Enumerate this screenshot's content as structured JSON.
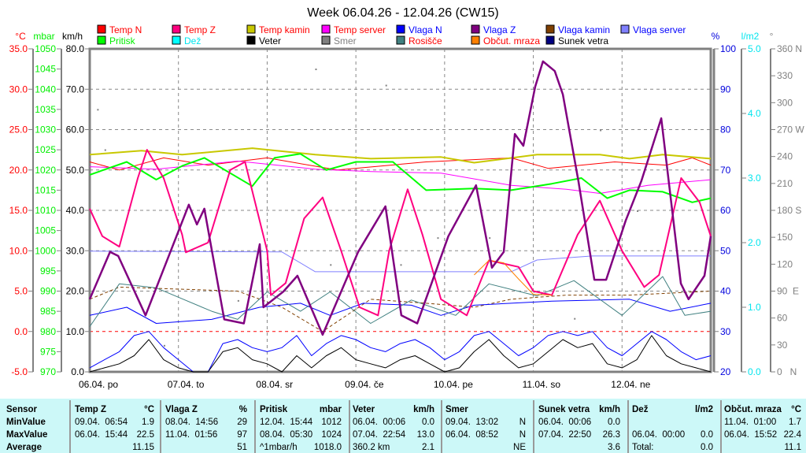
{
  "chart_data": {
    "type": "line",
    "title": "Week 06.04.26 - 12.04.26 (CW15)",
    "x_unit": "hours since 06.04. 00:00",
    "xlim": [
      0,
      168
    ],
    "x_tick_labels": [
      "06.04. po",
      "07.04. to",
      "08.04. sr",
      "09.04. če",
      "10.04. pe",
      "11.04. so",
      "12.04. ne"
    ],
    "axes": {
      "temp": {
        "label": "°C",
        "range": [
          -5,
          35
        ],
        "ticks": [
          "-5.0",
          "0.0",
          "5.0",
          "10.0",
          "15.0",
          "20.0",
          "25.0",
          "30.0",
          "35.0"
        ],
        "color": "#ff0000"
      },
      "pressure": {
        "label": "mbar",
        "range": [
          970,
          1050
        ],
        "ticks": [
          "970",
          "975",
          "980",
          "985",
          "990",
          "995",
          "1000",
          "1005",
          "1010",
          "1015",
          "1020",
          "1025",
          "1030",
          "1035",
          "1040",
          "1045",
          "1050"
        ],
        "color": "#00ee00"
      },
      "wind": {
        "label": "km/h",
        "range": [
          0,
          80
        ],
        "ticks": [
          "0.0",
          "10.0",
          "20.0",
          "30.0",
          "40.0",
          "50.0",
          "60.0",
          "70.0",
          "80.0"
        ],
        "color": "#000000"
      },
      "humidity": {
        "label": "%",
        "range": [
          20,
          100
        ],
        "ticks": [
          "20",
          "30",
          "40",
          "50",
          "60",
          "70",
          "80",
          "90",
          "100"
        ],
        "color": "#0000dd"
      },
      "rain": {
        "label": "l/m2",
        "range": [
          0,
          5
        ],
        "ticks": [
          "0.0",
          "1.0",
          "2.0",
          "3.0",
          "4.0",
          "5.0"
        ],
        "color": "#00e5ee"
      },
      "direction": {
        "label": "°",
        "range": [
          0,
          360
        ],
        "ticks": [
          "0   N",
          "30",
          "60",
          "90  E",
          "120",
          "150",
          "180 S",
          "210",
          "240",
          "270 W",
          "300",
          "330",
          "360 N"
        ],
        "color": "#808080"
      }
    },
    "legend": [
      {
        "name": "Temp N",
        "color": "#ff0000",
        "text_color": "#ff0000"
      },
      {
        "name": "Temp Z",
        "color": "#ff0080",
        "text_color": "#ff0000"
      },
      {
        "name": "Temp kamin",
        "color": "#c8c800",
        "text_color": "#ff0000"
      },
      {
        "name": "Temp server",
        "color": "#ff00ff",
        "text_color": "#ff0000"
      },
      {
        "name": "Vlaga N",
        "color": "#0000ff",
        "text_color": "#0000ff"
      },
      {
        "name": "Vlaga Z",
        "color": "#800080",
        "text_color": "#0000ff"
      },
      {
        "name": "Vlaga kamin",
        "color": "#804000",
        "text_color": "#0000ff"
      },
      {
        "name": "Vlaga server",
        "color": "#8080ff",
        "text_color": "#0000ff"
      },
      {
        "name": "Pritisk",
        "color": "#00ff00",
        "text_color": "#00ee00"
      },
      {
        "name": "Dež",
        "color": "#00ffff",
        "text_color": "#00e5ee"
      },
      {
        "name": "Veter",
        "color": "#000000",
        "text_color": "#000000"
      },
      {
        "name": "Smer",
        "color": "#808080",
        "text_color": "#808080"
      },
      {
        "name": "Rosišče",
        "color": "#408080",
        "text_color": "#ff0000"
      },
      {
        "name": "Občut. mraza",
        "color": "#ff8000",
        "text_color": "#ff0000"
      },
      {
        "name": "Sunek vetra",
        "color": "#000080",
        "text_color": "#000000"
      }
    ],
    "series": [
      {
        "name": "Temp N",
        "axis": "temp",
        "color": "#ff0000",
        "width": 1,
        "x": [
          0,
          8,
          20,
          32,
          48,
          67,
          91,
          114,
          124,
          142,
          156,
          163,
          168
        ],
        "y": [
          21,
          20,
          21.5,
          20.6,
          21.5,
          20,
          21,
          21.5,
          20.2,
          21,
          20.6,
          21.5,
          20.6
        ]
      },
      {
        "name": "Temp kamin",
        "axis": "temp",
        "color": "#c8c800",
        "width": 2,
        "x": [
          0,
          14,
          25,
          44,
          61,
          76,
          95,
          104,
          121,
          138,
          146,
          155,
          168
        ],
        "y": [
          21.9,
          22.4,
          21.9,
          22.7,
          21.9,
          21.4,
          21.6,
          20.9,
          21.9,
          21.9,
          21.4,
          21.9,
          21.4
        ]
      },
      {
        "name": "Temp server",
        "axis": "temp",
        "color": "#ff00ff",
        "width": 1,
        "x": [
          0,
          18,
          40,
          61,
          76,
          95,
          114,
          129,
          138,
          151,
          168
        ],
        "y": [
          20.4,
          20.1,
          21.1,
          20.1,
          19.8,
          19.6,
          18.1,
          17.6,
          17.1,
          18.1,
          18.8
        ]
      },
      {
        "name": "Vlaga server",
        "axis": "humidity",
        "color": "#8080ff",
        "width": 1,
        "x": [
          0,
          52,
          61,
          114,
          121,
          136,
          168
        ],
        "y": [
          49.9,
          49.7,
          44.8,
          44.8,
          47.7,
          48.7,
          48.7
        ]
      },
      {
        "name": "Vlaga kamin",
        "axis": "humidity",
        "color": "#804000",
        "width": 1,
        "dash": "4,3",
        "x": [
          0,
          8,
          40,
          52,
          63,
          76,
          91,
          104,
          114,
          129,
          146,
          168
        ],
        "y": [
          38,
          41,
          40,
          36,
          30,
          38,
          37,
          36,
          38,
          39,
          39,
          40
        ]
      },
      {
        "name": "Vlaga N",
        "axis": "humidity",
        "color": "#0000ff",
        "width": 1,
        "x": [
          0,
          10,
          18,
          33,
          46,
          57,
          65,
          74,
          87,
          95,
          104,
          114,
          125,
          146,
          157,
          168
        ],
        "y": [
          34,
          36,
          32,
          33,
          36,
          37,
          34,
          37,
          36.5,
          34,
          36.5,
          37,
          37.5,
          38,
          35,
          37
        ]
      },
      {
        "name": "Rosišče",
        "axis": "temp",
        "color": "#408080",
        "width": 1,
        "x": [
          0,
          8,
          18,
          33,
          40,
          48,
          57,
          65,
          76,
          87,
          99,
          108,
          121,
          131,
          144,
          155,
          161,
          168
        ],
        "y": [
          0.6,
          5.9,
          5.4,
          2.5,
          1.5,
          4.9,
          2.5,
          4.9,
          1,
          3.9,
          2,
          5.9,
          4.4,
          6.3,
          2,
          6.8,
          2,
          2.5
        ]
      },
      {
        "name": "Pritisk",
        "axis": "pressure",
        "color": "#00ff00",
        "width": 2,
        "x": [
          0,
          10,
          18,
          25,
          31,
          44,
          50,
          57,
          64,
          72,
          82,
          91,
          104,
          114,
          125,
          133,
          140,
          146,
          155,
          163,
          168
        ],
        "y": [
          1018.8,
          1022,
          1017.6,
          1021,
          1023,
          1016,
          1023,
          1024,
          1020,
          1022,
          1022,
          1015,
          1015.4,
          1015,
          1016.6,
          1018,
          1013,
          1015,
          1014.6,
          1012,
          1013
        ]
      },
      {
        "name": "Temp Z",
        "axis": "temp",
        "color": "#ff0080",
        "width": 2,
        "x": [
          0,
          3.4,
          8,
          13,
          15.5,
          20,
          25,
          26,
          32,
          38,
          42,
          48,
          49,
          53,
          58,
          63,
          68,
          73,
          78,
          81,
          86,
          90,
          95,
          102,
          108,
          116,
          120,
          125,
          132,
          138,
          144,
          150,
          154,
          160,
          165,
          168
        ],
        "y": [
          15.2,
          11.8,
          10.5,
          19,
          22.5,
          19,
          12,
          9.8,
          11,
          20,
          21,
          10,
          4.5,
          6,
          14,
          16.6,
          10,
          3,
          2,
          10,
          17.6,
          12,
          4,
          2,
          8.8,
          8,
          5,
          4.5,
          12,
          16.2,
          10,
          5.5,
          7,
          19,
          16,
          11.8
        ]
      },
      {
        "name": "Občut. mraza",
        "axis": "temp",
        "color": "#ff8000",
        "width": 1,
        "x": [
          104,
          108,
          112,
          116,
          120,
          125
        ],
        "y": [
          7,
          8.8,
          8.5,
          6.5,
          4.6,
          4.5
        ]
      },
      {
        "name": "Vlaga Z",
        "axis": "humidity",
        "color": "#800080",
        "width": 2.5,
        "x": [
          0,
          5.5,
          7.7,
          15.1,
          26.8,
          29,
          31,
          36.4,
          41.7,
          46,
          47,
          52.4,
          56.2,
          63,
          72.6,
          80,
          84.3,
          88.6,
          97,
          104.5,
          108.8,
          112,
          115,
          117.3,
          120.5,
          122.6,
          125.8,
          128,
          132.2,
          136.5,
          139.7,
          145,
          149.2,
          154.6,
          159.9,
          162,
          166.3,
          168
        ],
        "y": [
          38,
          49.7,
          48.7,
          34,
          61.4,
          56.5,
          60.4,
          33,
          32,
          51.6,
          36,
          39.9,
          43.8,
          29.2,
          49.7,
          61,
          34,
          32,
          53.6,
          66.2,
          45.8,
          49.7,
          78.9,
          76,
          90.6,
          96.9,
          94.5,
          88.7,
          67.2,
          42.8,
          42.8,
          57.5,
          67.2,
          82.8,
          41.9,
          38,
          43.8,
          53.6
        ]
      },
      {
        "name": "Sunek vetra",
        "axis": "wind",
        "color": "#0000ff",
        "width": 1,
        "step": 4,
        "y": [
          1,
          3,
          5,
          9,
          10,
          6,
          3,
          0,
          0,
          7,
          8,
          6,
          5,
          6,
          9,
          4,
          7,
          9,
          8,
          6,
          5,
          7,
          8,
          6,
          3,
          5,
          9,
          10,
          7,
          4,
          6,
          9,
          10,
          9,
          10,
          6,
          4,
          7,
          10,
          8,
          5,
          3,
          4
        ]
      },
      {
        "name": "Veter",
        "axis": "wind",
        "color": "#000000",
        "width": 1,
        "step": 4,
        "y": [
          0,
          1,
          2,
          4,
          8,
          3,
          1,
          0,
          0,
          5,
          6,
          3,
          2,
          0,
          4,
          1,
          4,
          6,
          3,
          2,
          1,
          3,
          4,
          2,
          0,
          1,
          5,
          8,
          4,
          1,
          2,
          5,
          8,
          6,
          7,
          2,
          1,
          3,
          9,
          4,
          2,
          1,
          0
        ]
      }
    ],
    "wind_direction_points": {
      "x": [
        2,
        4,
        20,
        40,
        61,
        65,
        80,
        84,
        94,
        108,
        120,
        131,
        138,
        148,
        160
      ],
      "y": [
        293,
        248,
        30,
        80,
        338,
        120,
        320,
        120,
        150,
        150,
        90,
        60,
        270,
        180,
        90
      ]
    }
  },
  "table": {
    "rows": [
      "Sensor",
      "MinValue",
      "MaxValue",
      "Average"
    ],
    "columns": [
      {
        "name": "Temp Z",
        "unit": "°C",
        "min_time": "09.04.  06:54",
        "min": "1.9",
        "max_time": "06.04.  15:44",
        "max": "22.5",
        "avg_label": "",
        "avg": "11.15"
      },
      {
        "name": "Vlaga Z",
        "unit": "%",
        "min_time": "08.04.  14:56",
        "min": "29",
        "max_time": "11.04.  01:56",
        "max": "97",
        "avg_label": "",
        "avg": "51"
      },
      {
        "name": "Pritisk",
        "unit": "mbar",
        "min_time": "12.04.  15:44",
        "min": "1012",
        "max_time": "08.04.  05:30",
        "max": "1024",
        "avg_label": "^1mbar/h",
        "avg": "1018.0"
      },
      {
        "name": "Veter",
        "unit": "km/h",
        "min_time": "06.04.  00:06",
        "min": "0.0",
        "max_time": "07.04.  22:54",
        "max": "13.0",
        "avg_label": "360.2 km",
        "avg": "2.1"
      },
      {
        "name": "Smer",
        "unit": "",
        "min_time": "09.04.  13:02",
        "min": "N",
        "max_time": "06.04.  08:52",
        "max": "N",
        "avg_label": "",
        "avg": "NE"
      },
      {
        "name": "Sunek vetra",
        "unit": "km/h",
        "min_time": "06.04.  00:06",
        "min": "0.0",
        "max_time": "07.04.  22:50",
        "max": "26.3",
        "avg_label": "",
        "avg": "3.6"
      },
      {
        "name": "Dež",
        "unit": "l/m2",
        "min_time": "",
        "min": "",
        "max_time": "06.04.  00:00",
        "max": "0.0",
        "avg_label": "Total:",
        "avg": "0.0"
      },
      {
        "name": "Občut. mraza",
        "unit": "°C",
        "min_time": "11.04.  01:00",
        "min": "1.7",
        "max_time": "06.04.  15:52",
        "max": "22.4",
        "avg_label": "",
        "avg": "11.1"
      }
    ]
  }
}
